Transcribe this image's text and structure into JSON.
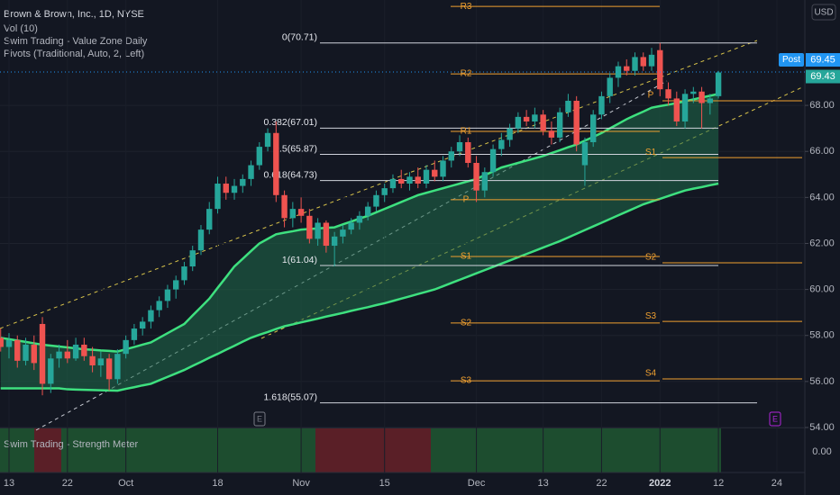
{
  "chart_data": {
    "type": "candlestick",
    "title": "Brown & Brown, Inc., 1D, NYSE",
    "indicators": [
      "Vol (10)",
      "Swim Trading - Value Zone Daily",
      "Pivots (Traditional, Auto, 2, Left)"
    ],
    "currency": "USD",
    "categories": [
      null,
      "13",
      null,
      null,
      null,
      null,
      null,
      null,
      "22",
      null,
      null,
      null,
      null,
      null,
      null,
      "Oct",
      null,
      null,
      null,
      null,
      null,
      null,
      null,
      null,
      null,
      null,
      "18",
      null,
      null,
      null,
      null,
      null,
      null,
      null,
      null,
      null,
      "Nov",
      null,
      null,
      null,
      null,
      null,
      null,
      null,
      null,
      null,
      "15",
      null,
      null,
      null,
      null,
      null,
      null,
      null,
      null,
      null,
      null,
      "Dec",
      null,
      null,
      null,
      null,
      null,
      null,
      null,
      "13",
      null,
      null,
      null,
      null,
      null,
      null,
      "22",
      null,
      null,
      null,
      null,
      null,
      null,
      "2022",
      null,
      null,
      null,
      null,
      null,
      null,
      "12",
      null,
      null,
      null,
      null,
      null,
      null,
      "24",
      null,
      null,
      null
    ],
    "open": [
      57.9,
      57.5,
      57.8,
      56.9,
      57.6,
      58.5,
      55.9,
      57.0,
      57.3,
      57.0,
      57.6,
      57.1,
      56.7,
      57.0,
      56.1,
      57.2,
      57.8,
      58.3,
      58.6,
      59.1,
      59.5,
      60.0,
      60.4,
      61.0,
      61.7,
      62.6,
      63.5,
      64.6,
      64.2,
      64.5,
      64.8,
      65.4,
      66.2,
      66.8,
      64.1,
      63.1,
      63.5,
      63.2,
      62.2,
      62.9,
      61.9,
      62.3,
      62.6,
      62.9,
      63.2,
      63.6,
      64.1,
      64.4,
      64.8,
      64.6,
      64.9,
      64.6,
      65.2,
      64.9,
      65.6,
      66.0,
      66.4,
      65.5,
      64.3,
      65.1,
      66.1,
      66.5,
      67.0,
      67.5,
      67.3,
      67.6,
      66.9,
      66.6,
      67.7,
      68.2,
      65.4,
      66.4,
      67.6,
      68.4,
      69.2,
      69.7,
      69.5,
      70.1,
      69.7,
      70.4,
      68.7,
      68.3,
      67.3,
      68.5,
      68.6,
      68.1,
      68.4,
      null,
      null,
      null,
      null,
      null,
      null,
      null,
      null,
      null,
      null
    ],
    "high": [
      58.3,
      58.1,
      58.0,
      57.9,
      58.0,
      58.8,
      57.2,
      57.6,
      57.8,
      57.9,
      57.9,
      57.5,
      57.3,
      57.2,
      57.4,
      58.0,
      58.5,
      58.8,
      59.3,
      59.7,
      60.2,
      60.6,
      61.2,
      61.9,
      62.8,
      63.8,
      64.9,
      64.9,
      64.8,
      65.0,
      65.6,
      66.4,
      67.0,
      67.3,
      64.3,
      63.8,
      64.0,
      63.5,
      63.1,
      63.0,
      62.5,
      62.8,
      63.1,
      63.4,
      63.8,
      64.3,
      64.6,
      65.0,
      65.2,
      65.1,
      65.3,
      65.4,
      65.6,
      65.8,
      66.2,
      66.7,
      66.6,
      65.8,
      65.3,
      66.3,
      66.8,
      67.2,
      67.7,
      67.8,
      67.9,
      67.8,
      67.3,
      67.9,
      68.5,
      68.4,
      66.6,
      67.8,
      68.6,
      69.4,
      69.9,
      70.0,
      70.3,
      70.3,
      70.5,
      70.71,
      69.0,
      68.6,
      68.7,
      68.8,
      68.8,
      68.5,
      69.5,
      null,
      null,
      null,
      null,
      null,
      null,
      null,
      null,
      null,
      null
    ],
    "low": [
      57.3,
      57.0,
      56.6,
      56.7,
      56.5,
      55.4,
      55.5,
      56.6,
      56.8,
      56.9,
      56.9,
      56.4,
      56.2,
      55.6,
      55.9,
      57.0,
      57.6,
      58.0,
      58.3,
      58.8,
      59.2,
      59.6,
      60.2,
      60.8,
      61.5,
      62.4,
      63.3,
      63.9,
      63.9,
      64.2,
      64.5,
      65.2,
      66.0,
      63.8,
      62.7,
      62.7,
      62.9,
      62.0,
      61.9,
      61.6,
      61.0,
      62.0,
      62.4,
      62.6,
      63.0,
      63.4,
      63.8,
      64.2,
      64.4,
      64.3,
      64.4,
      64.4,
      64.7,
      64.7,
      65.3,
      65.8,
      65.3,
      63.8,
      64.0,
      64.9,
      65.8,
      66.2,
      66.8,
      67.1,
      67.0,
      66.7,
      66.3,
      66.4,
      67.5,
      66.0,
      64.5,
      66.2,
      67.4,
      68.1,
      68.8,
      69.3,
      69.3,
      69.5,
      69.5,
      68.4,
      68.0,
      67.1,
      67.0,
      68.1,
      67.0,
      67.6,
      68.3,
      null,
      null,
      null,
      null,
      null,
      null,
      null,
      null,
      null,
      null
    ],
    "close": [
      57.5,
      57.8,
      56.9,
      57.6,
      56.8,
      55.9,
      57.0,
      57.3,
      57.0,
      57.6,
      57.1,
      56.7,
      57.0,
      56.1,
      57.2,
      57.8,
      58.3,
      58.6,
      59.1,
      59.5,
      60.0,
      60.4,
      61.0,
      61.7,
      62.6,
      63.5,
      64.6,
      64.2,
      64.5,
      64.8,
      65.4,
      66.2,
      66.8,
      64.1,
      63.1,
      63.5,
      63.2,
      62.2,
      62.9,
      61.9,
      62.3,
      62.6,
      62.9,
      63.2,
      63.6,
      64.1,
      64.4,
      64.8,
      64.6,
      64.9,
      64.6,
      65.2,
      64.9,
      65.6,
      66.0,
      66.4,
      65.5,
      64.3,
      65.1,
      66.1,
      66.5,
      67.0,
      67.5,
      67.3,
      67.6,
      66.9,
      66.6,
      67.7,
      68.2,
      66.3,
      66.4,
      67.6,
      68.4,
      69.2,
      69.7,
      69.5,
      70.1,
      69.7,
      70.2,
      68.7,
      68.3,
      67.3,
      68.5,
      68.6,
      68.1,
      68.3,
      69.43,
      null,
      null,
      null,
      null,
      null,
      null,
      null,
      null,
      null,
      null
    ],
    "up_color": "#26a69a",
    "down_color": "#ef5350",
    "zone_lines": [
      {
        "color": "#3ee07f",
        "values": [
          57.9,
          57.84,
          57.78,
          57.72,
          57.66,
          57.6,
          57.56,
          57.52,
          57.48,
          57.44,
          57.4,
          57.38,
          57.35,
          57.33,
          57.3,
          57.4,
          57.5,
          57.6,
          57.7,
          57.9,
          58.1,
          58.3,
          58.5,
          58.87,
          59.23,
          59.6,
          60.07,
          60.53,
          61.0,
          61.33,
          61.67,
          62.0,
          62.2,
          62.4,
          62.47,
          62.53,
          62.6,
          62.63,
          62.65,
          62.68,
          62.7,
          62.83,
          62.95,
          63.08,
          63.2,
          63.35,
          63.5,
          63.65,
          63.8,
          63.95,
          64.1,
          64.2,
          64.3,
          64.4,
          64.5,
          64.6,
          64.7,
          64.8,
          64.97,
          65.13,
          65.3,
          65.4,
          65.5,
          65.6,
          65.7,
          65.8,
          65.93,
          66.05,
          66.18,
          66.3,
          66.47,
          66.63,
          66.8,
          67.0,
          67.2,
          67.4,
          67.57,
          67.73,
          67.9,
          67.97,
          68.03,
          68.1,
          68.18,
          68.26,
          68.34,
          68.42,
          68.5,
          null,
          null,
          null,
          null,
          null,
          null,
          null,
          null,
          null,
          null
        ]
      },
      {
        "color": "#3ee07f",
        "values": [
          55.7,
          55.7,
          55.7,
          55.7,
          55.7,
          55.7,
          55.7,
          55.7,
          55.66,
          55.65,
          55.64,
          55.63,
          55.62,
          55.61,
          55.6,
          55.68,
          55.75,
          55.83,
          55.9,
          56.05,
          56.2,
          56.35,
          56.5,
          56.68,
          56.85,
          57.03,
          57.2,
          57.38,
          57.55,
          57.73,
          57.9,
          58.03,
          58.15,
          58.28,
          58.4,
          58.48,
          58.57,
          58.65,
          58.73,
          58.82,
          58.9,
          58.98,
          59.07,
          59.15,
          59.23,
          59.32,
          59.4,
          59.5,
          59.6,
          59.7,
          59.8,
          59.9,
          60.0,
          60.14,
          60.28,
          60.42,
          60.56,
          60.7,
          60.84,
          60.98,
          61.12,
          61.26,
          61.4,
          61.54,
          61.68,
          61.82,
          61.96,
          62.1,
          62.26,
          62.42,
          62.58,
          62.74,
          62.9,
          63.06,
          63.22,
          63.38,
          63.54,
          63.7,
          63.82,
          63.94,
          64.06,
          64.18,
          64.3,
          64.38,
          64.45,
          64.53,
          64.6,
          null,
          null,
          null,
          null,
          null,
          null,
          null,
          null,
          null,
          null
        ]
      }
    ],
    "zone_fill": "#1f6b4a",
    "ylim": [
      54,
      72.58
    ],
    "yticks": [
      {
        "value": 54,
        "label": "54.00"
      },
      {
        "value": 56,
        "label": "56.00"
      },
      {
        "value": 58,
        "label": "58.00"
      },
      {
        "value": 60,
        "label": "60.00"
      },
      {
        "value": 62,
        "label": "62.00"
      },
      {
        "value": 64,
        "label": "64.00"
      },
      {
        "value": 66,
        "label": "66.00"
      },
      {
        "value": 68,
        "label": "68.00"
      }
    ],
    "grid": true,
    "post": {
      "label": "Post",
      "value": 69.45,
      "color": "#2196f3"
    },
    "last": {
      "value": 69.43,
      "color": "#26a69a"
    },
    "fib": {
      "color": "#d1d4dc",
      "levels": [
        {
          "value": 70.71,
          "label": "0(70.71)"
        },
        {
          "value": 67.01,
          "label": "0.382(67.01)"
        },
        {
          "value": 65.87,
          "label": "0.5(65.87)"
        },
        {
          "value": 64.73,
          "label": "0.618(64.73)"
        },
        {
          "value": 61.04,
          "label": "1(61.04)"
        },
        {
          "value": 55.07,
          "label": "1.618(55.07)"
        }
      ]
    },
    "pivots": {
      "color": "#f0a030",
      "periods": [
        {
          "levels": [
            {
              "name": "R3",
              "value": 72.3
            },
            {
              "name": "R2",
              "value": 69.37
            },
            {
              "name": "R1",
              "value": 66.87
            },
            {
              "name": "P",
              "value": 63.9
            },
            {
              "name": "S1",
              "value": 61.43
            },
            {
              "name": "S2",
              "value": 58.54
            },
            {
              "name": "S3",
              "value": 56.03
            }
          ]
        },
        {
          "levels": [
            {
              "name": "P",
              "value": 68.2
            },
            {
              "name": "S1",
              "value": 65.73
            },
            {
              "name": "S2",
              "value": 61.16
            },
            {
              "name": "S3",
              "value": 58.61
            },
            {
              "name": "S4",
              "value": 56.11
            }
          ]
        }
      ]
    },
    "earnings": [
      {
        "label": "E"
      },
      {
        "label": "E"
      }
    ],
    "strength_meter": {
      "title": "Swim Trading - Strength Meter",
      "yticks": [
        {
          "value": 0,
          "label": "0.00"
        }
      ]
    }
  }
}
